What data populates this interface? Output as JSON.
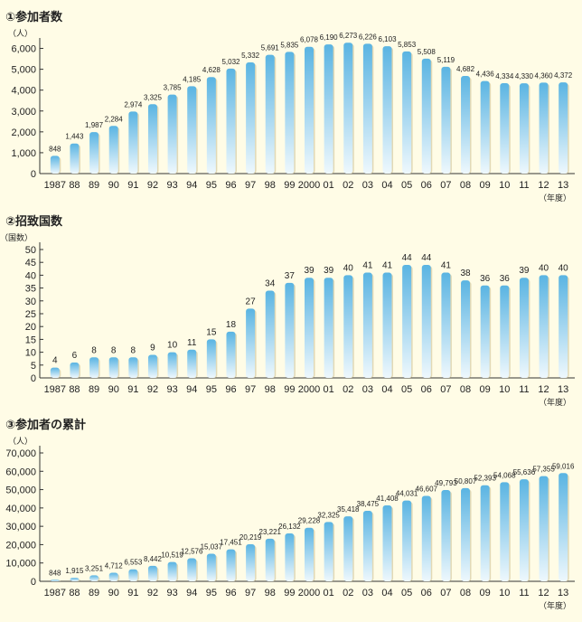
{
  "chart_data": [
    {
      "type": "bar",
      "title": "①参加者数",
      "ylabel": "（人）",
      "xlabel": "（年度）",
      "ylim": [
        0,
        6500
      ],
      "yticks": [
        0,
        1000,
        2000,
        3000,
        4000,
        5000,
        6000
      ],
      "ytick_labels": [
        "0",
        "1,000",
        "2,000",
        "3,000",
        "4,000",
        "5,000",
        "6,000"
      ],
      "categories": [
        "1987",
        "88",
        "89",
        "90",
        "91",
        "92",
        "93",
        "94",
        "95",
        "96",
        "97",
        "98",
        "99",
        "2000",
        "01",
        "02",
        "03",
        "04",
        "05",
        "06",
        "07",
        "08",
        "09",
        "10",
        "11",
        "12",
        "13"
      ],
      "values": [
        848,
        1443,
        1987,
        2284,
        2974,
        3325,
        3785,
        4185,
        4628,
        5032,
        5332,
        5691,
        5835,
        6078,
        6190,
        6273,
        6226,
        6103,
        5853,
        5508,
        5119,
        4682,
        4436,
        4334,
        4330,
        4360,
        4372
      ],
      "value_labels": [
        "848",
        "1,443",
        "1,987",
        "2,284",
        "2,974",
        "3,325",
        "3,785",
        "4,185",
        "4,628",
        "5,032",
        "5,332",
        "5,691",
        "5,835",
        "6,078",
        "6,190",
        "6,273",
        "6,226",
        "6,103",
        "5,853",
        "5,508",
        "5,119",
        "4,682",
        "4,436",
        "4,334",
        "4,330",
        "4,360",
        "4,372"
      ]
    },
    {
      "type": "bar",
      "title": "②招致国数",
      "ylabel": "（国数）",
      "xlabel": "（年度）",
      "ylim": [
        0,
        50
      ],
      "yticks": [
        0,
        5,
        10,
        15,
        20,
        25,
        30,
        35,
        40,
        45,
        50
      ],
      "ytick_labels": [
        "0",
        "5",
        "10",
        "15",
        "20",
        "25",
        "30",
        "35",
        "40",
        "45",
        "50"
      ],
      "categories": [
        "1987",
        "88",
        "89",
        "90",
        "91",
        "92",
        "93",
        "94",
        "95",
        "96",
        "97",
        "98",
        "99",
        "2000",
        "01",
        "02",
        "03",
        "04",
        "05",
        "06",
        "07",
        "08",
        "09",
        "10",
        "11",
        "12",
        "13"
      ],
      "values": [
        4,
        6,
        8,
        8,
        8,
        9,
        10,
        11,
        15,
        18,
        27,
        34,
        37,
        39,
        39,
        40,
        41,
        41,
        44,
        44,
        41,
        38,
        36,
        36,
        39,
        40,
        40
      ],
      "value_labels": [
        "4",
        "6",
        "8",
        "8",
        "8",
        "9",
        "10",
        "11",
        "15",
        "18",
        "27",
        "34",
        "37",
        "39",
        "39",
        "40",
        "41",
        "41",
        "44",
        "44",
        "41",
        "38",
        "36",
        "36",
        "39",
        "40",
        "40"
      ]
    },
    {
      "type": "bar",
      "title": "③参加者の累計",
      "ylabel": "（人）",
      "xlabel": "（年度）",
      "ylim": [
        0,
        70000
      ],
      "yticks": [
        0,
        10000,
        20000,
        30000,
        40000,
        50000,
        60000,
        70000
      ],
      "ytick_labels": [
        "0",
        "10,000",
        "20,000",
        "30,000",
        "40,000",
        "50,000",
        "60,000",
        "70,000"
      ],
      "categories": [
        "1987",
        "88",
        "89",
        "90",
        "91",
        "92",
        "93",
        "94",
        "95",
        "96",
        "97",
        "98",
        "99",
        "2000",
        "01",
        "02",
        "03",
        "04",
        "05",
        "06",
        "07",
        "08",
        "09",
        "10",
        "11",
        "12",
        "13"
      ],
      "values": [
        848,
        1915,
        3251,
        4712,
        6553,
        8442,
        10519,
        12576,
        15037,
        17451,
        20219,
        23221,
        26132,
        29228,
        32325,
        35418,
        38475,
        41408,
        44031,
        46607,
        49793,
        50807,
        52393,
        54068,
        55636,
        57355,
        59016
      ],
      "value_labels": [
        "848",
        "1,915",
        "3,251",
        "4,712",
        "6,553",
        "8,442",
        "10,519",
        "12,576",
        "15,037",
        "17,451",
        "20,219",
        "23,221",
        "26,132",
        "29,228",
        "32,325",
        "35,418",
        "38,475",
        "41,408",
        "44,031",
        "46,607",
        "49,793",
        "50,807",
        "52,393",
        "54,068",
        "55,636",
        "57,355",
        "59,016"
      ]
    }
  ]
}
